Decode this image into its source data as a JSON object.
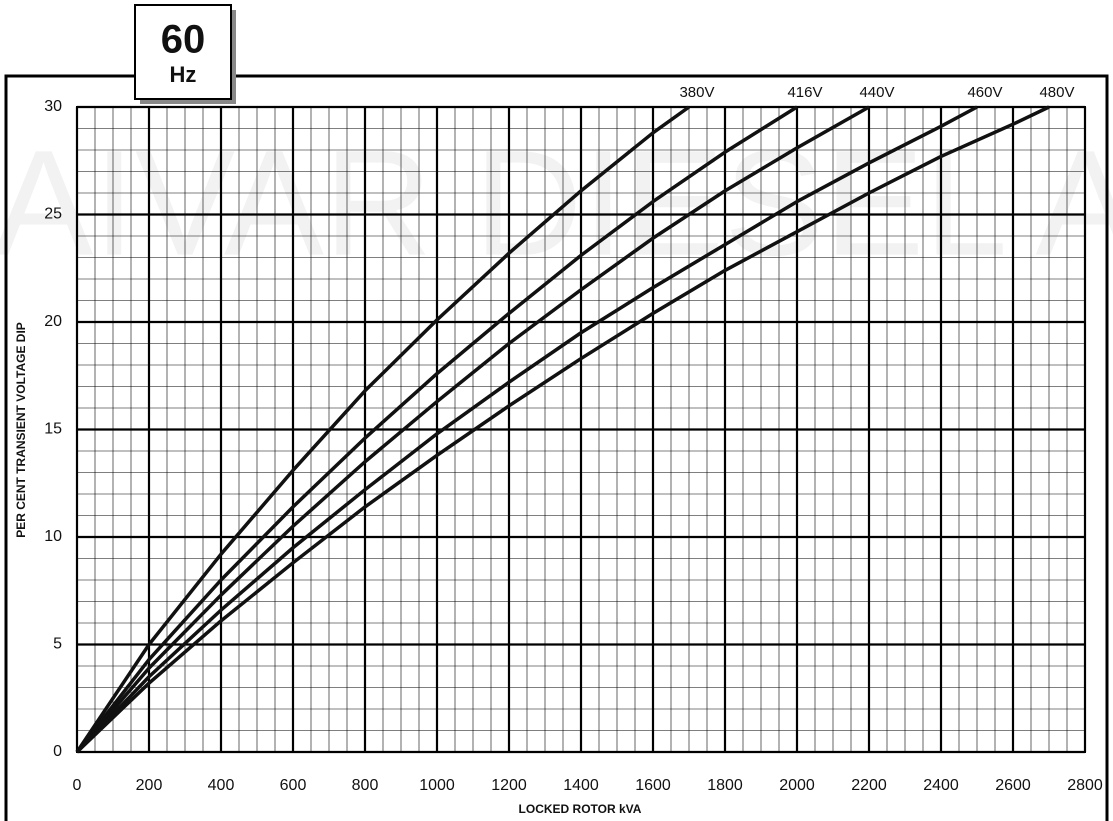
{
  "badge": {
    "value": "60",
    "unit": "Hz"
  },
  "watermark": "PAIVAR DIESEL AS",
  "chart_data": {
    "type": "line",
    "xlabel": "LOCKED ROTOR kVA",
    "ylabel": "PER CENT TRANSIENT VOLTAGE DIP",
    "xlim": [
      0,
      2800
    ],
    "ylim": [
      0,
      30
    ],
    "xticks": [
      0,
      200,
      400,
      600,
      800,
      1000,
      1200,
      1400,
      1600,
      1800,
      2000,
      2200,
      2400,
      2600,
      2800
    ],
    "yticks": [
      0,
      5,
      10,
      15,
      20,
      25,
      30
    ],
    "grid": true,
    "minor_grid": {
      "x": 50,
      "y": 1
    },
    "series": [
      {
        "name": "380V",
        "color": "#111111",
        "x": [
          0,
          200,
          400,
          600,
          800,
          1000,
          1200,
          1400,
          1600,
          1700
        ],
        "values": [
          0,
          5,
          9.2,
          13.1,
          16.8,
          20.1,
          23.2,
          26.1,
          28.8,
          30
        ]
      },
      {
        "name": "416V",
        "color": "#111111",
        "x": [
          0,
          200,
          400,
          600,
          800,
          1000,
          1200,
          1400,
          1600,
          1800,
          2000
        ],
        "values": [
          0,
          4.3,
          8.0,
          11.4,
          14.6,
          17.6,
          20.4,
          23.1,
          25.6,
          27.9,
          30
        ]
      },
      {
        "name": "440V",
        "color": "#111111",
        "x": [
          0,
          200,
          400,
          600,
          800,
          1000,
          1200,
          1400,
          1600,
          1800,
          2000,
          2200
        ],
        "values": [
          0,
          3.9,
          7.3,
          10.5,
          13.5,
          16.3,
          19.0,
          21.5,
          23.9,
          26.1,
          28.1,
          30
        ]
      },
      {
        "name": "460V",
        "color": "#111111",
        "x": [
          0,
          200,
          400,
          600,
          800,
          1000,
          1200,
          1400,
          1600,
          1800,
          2000,
          2200,
          2400,
          2500
        ],
        "values": [
          0,
          3.5,
          6.6,
          9.5,
          12.2,
          14.8,
          17.2,
          19.5,
          21.6,
          23.6,
          25.6,
          27.4,
          29.1,
          30
        ]
      },
      {
        "name": "480V",
        "color": "#111111",
        "x": [
          0,
          200,
          400,
          600,
          800,
          1000,
          1200,
          1400,
          1600,
          1800,
          2000,
          2200,
          2400,
          2600,
          2700
        ],
        "values": [
          0,
          3.2,
          6.1,
          8.8,
          11.4,
          13.8,
          16.1,
          18.3,
          20.4,
          22.4,
          24.2,
          26.0,
          27.7,
          29.2,
          30
        ]
      }
    ]
  }
}
